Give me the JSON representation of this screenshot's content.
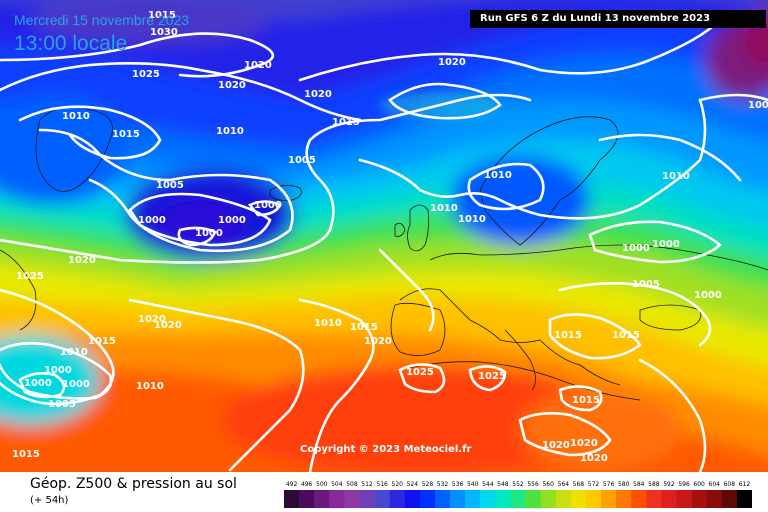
{
  "header": {
    "date_text": "Mercredi 15 novembre 2023",
    "time_text": "13:00 locale",
    "run_text": "Run GFS 6 Z du Lundi 13 novembre 2023"
  },
  "copyright": "Copyright © 2023 Meteociel.fr",
  "footer": {
    "title": "Géop. Z500 & pression au sol",
    "subtitle": "(+ 54h)"
  },
  "legend": {
    "labels": [
      "492",
      "496",
      "500",
      "504",
      "508",
      "512",
      "516",
      "520",
      "524",
      "528",
      "532",
      "536",
      "540",
      "544",
      "548",
      "552",
      "556",
      "560",
      "564",
      "568",
      "572",
      "576",
      "580",
      "584",
      "588",
      "592",
      "596",
      "600",
      "604",
      "608",
      "612"
    ],
    "colors": [
      "#2b0a36",
      "#4a0b5c",
      "#6a1a7d",
      "#8a2a9a",
      "#8c3aa8",
      "#7040b8",
      "#4848d0",
      "#2c28e0",
      "#1010f0",
      "#0030ff",
      "#0060ff",
      "#0090ff",
      "#00b8ff",
      "#00d8f0",
      "#00e8c0",
      "#20e880",
      "#50e040",
      "#90e020",
      "#c8e010",
      "#f0e000",
      "#ffc800",
      "#ffa000",
      "#ff7800",
      "#ff5000",
      "#f03020",
      "#e02020",
      "#c81818",
      "#a81010",
      "#880c0c",
      "#600808",
      "#000000"
    ]
  },
  "isobar_labels": [
    {
      "text": "1015"
    },
    {
      "text": "1030"
    },
    {
      "text": "1025"
    },
    {
      "text": "1020"
    },
    {
      "text": "1020"
    },
    {
      "text": "1020"
    },
    {
      "text": "1020"
    },
    {
      "text": "1010"
    },
    {
      "text": "1015"
    },
    {
      "text": "1010"
    },
    {
      "text": "1015"
    },
    {
      "text": "1005"
    },
    {
      "text": "1005"
    },
    {
      "text": "1000"
    },
    {
      "text": "1000"
    },
    {
      "text": "1000"
    },
    {
      "text": "1000"
    },
    {
      "text": "1020"
    },
    {
      "text": "1025"
    },
    {
      "text": "1010"
    },
    {
      "text": "1010"
    },
    {
      "text": "1010"
    },
    {
      "text": "1010"
    },
    {
      "text": "1000"
    },
    {
      "text": "1000"
    },
    {
      "text": "1005"
    },
    {
      "text": "1000"
    },
    {
      "text": "1020"
    },
    {
      "text": "1020"
    },
    {
      "text": "1015"
    },
    {
      "text": "1010"
    },
    {
      "text": "1000"
    },
    {
      "text": "1000"
    },
    {
      "text": "1000"
    },
    {
      "text": "1010"
    },
    {
      "text": "1005"
    },
    {
      "text": "1010"
    },
    {
      "text": "1015"
    },
    {
      "text": "1020"
    },
    {
      "text": "1015"
    },
    {
      "text": "1015"
    },
    {
      "text": "1025"
    },
    {
      "text": "1025"
    },
    {
      "text": "1015"
    },
    {
      "text": "1020"
    },
    {
      "text": "1020"
    },
    {
      "text": "1020"
    },
    {
      "text": "1015"
    },
    {
      "text": "100"
    }
  ]
}
